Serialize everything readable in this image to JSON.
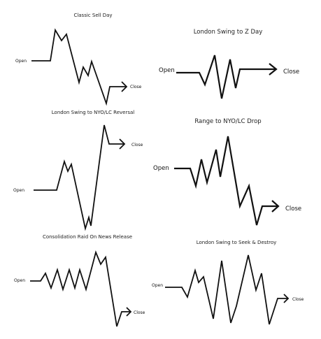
{
  "panels": [
    {
      "id": "classic-sell-day",
      "title": "Classic Sell Day",
      "open_label": "Open",
      "close_label": "Close"
    },
    {
      "id": "london-swing-to-z-day",
      "title": "London Swing to Z Day",
      "open_label": "Open",
      "close_label": "Close"
    },
    {
      "id": "london-swing-to-nyo-lc-reversal",
      "title": "London Swing to NYO/LC Reversal",
      "open_label": "Open",
      "close_label": "Close"
    },
    {
      "id": "range-to-nyo-lc-drop",
      "title": "Range to NYO/LC Drop",
      "open_label": "Open",
      "close_label": "Close"
    },
    {
      "id": "consolidation-raid-on-news-release",
      "title": "Consolidation Raid On News Release",
      "open_label": "Open",
      "close_label": "Close"
    },
    {
      "id": "london-swing-to-seek-and-destroy",
      "title": "London Swing to Seek & Destroy",
      "open_label": "Open",
      "close_label": "Close"
    }
  ]
}
